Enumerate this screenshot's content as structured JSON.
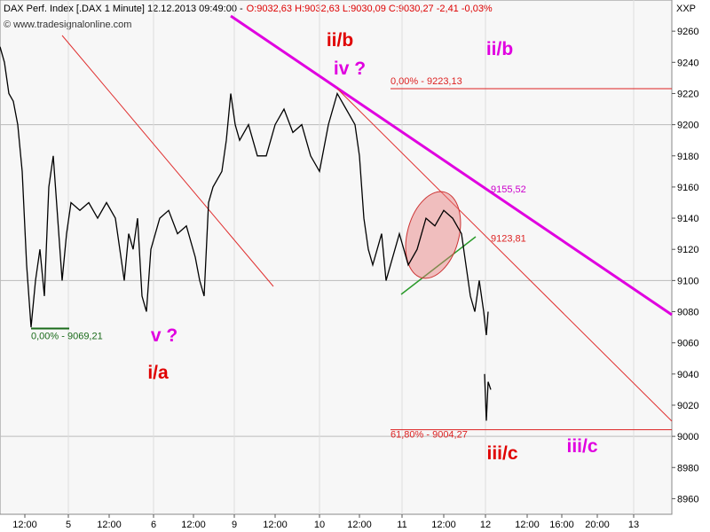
{
  "chart_data": {
    "type": "line",
    "title": "DAX Perf. Index [.DAX  1 Minute] 12.12.2013 09:49:00 -",
    "quote": "O:9032,63 H:9032,63 L:9030,09 C:9030,27 -2,41 -0,03%",
    "copyright": "© www.tradesignalonline.com",
    "axis_label": "XXP",
    "xlim": [
      0,
      75.7
    ],
    "xticks": [
      {
        "value": 2.8,
        "label": "12:00"
      },
      {
        "value": 7.7,
        "label": "5"
      },
      {
        "value": 12.3,
        "label": "12:00"
      },
      {
        "value": 17.3,
        "label": "6"
      },
      {
        "value": 21.8,
        "label": "12:00"
      },
      {
        "value": 26.4,
        "label": "9"
      },
      {
        "value": 31.0,
        "label": "12:00"
      },
      {
        "value": 36.0,
        "label": "10"
      },
      {
        "value": 40.5,
        "label": "12:00"
      },
      {
        "value": 45.3,
        "label": "11"
      },
      {
        "value": 50.0,
        "label": "12:00"
      },
      {
        "value": 54.7,
        "label": "12"
      },
      {
        "value": 59.4,
        "label": "12:00"
      },
      {
        "value": 63.3,
        "label": "16:00"
      },
      {
        "value": 67.3,
        "label": "20:00"
      },
      {
        "value": 71.4,
        "label": "13"
      }
    ],
    "ylim": [
      8950,
      9280
    ],
    "yticks": [
      8960,
      8980,
      9000,
      9020,
      9040,
      9060,
      9080,
      9100,
      9120,
      9140,
      9160,
      9180,
      9200,
      9220,
      9240,
      9260
    ],
    "grid": true,
    "series": [
      {
        "name": "DAX",
        "color": "#000000",
        "x": [
          0,
          0.5,
          1,
          1.5,
          2,
          2.5,
          3,
          3.5,
          4,
          4.5,
          5,
          5.5,
          6,
          6.5,
          7,
          7.5,
          8,
          9,
          10,
          11,
          12,
          13,
          13.5,
          14,
          14.5,
          15,
          15.5,
          16,
          16.5,
          17,
          18,
          19,
          20,
          21,
          22,
          22.5,
          23,
          23.5,
          24,
          25,
          25.5,
          26,
          26.5,
          27,
          28,
          29,
          30,
          31,
          32,
          33,
          34,
          35,
          36,
          37,
          38,
          39,
          40,
          40.5,
          41,
          41.5,
          42,
          43,
          43.5,
          44,
          45,
          46,
          47,
          48,
          49,
          50,
          51,
          52,
          52.5,
          53,
          53.5,
          54,
          54.5,
          54.8,
          55,
          55.1,
          54.6,
          54.8,
          55,
          55.3
        ],
        "values": [
          9250,
          9240,
          9220,
          9215,
          9200,
          9170,
          9110,
          9070,
          9100,
          9120,
          9090,
          9160,
          9180,
          9140,
          9100,
          9130,
          9150,
          9145,
          9150,
          9140,
          9150,
          9140,
          9120,
          9100,
          9130,
          9120,
          9140,
          9090,
          9080,
          9120,
          9140,
          9145,
          9130,
          9135,
          9115,
          9100,
          9090,
          9150,
          9160,
          9170,
          9190,
          9220,
          9200,
          9190,
          9200,
          9180,
          9180,
          9200,
          9210,
          9195,
          9200,
          9180,
          9170,
          9200,
          9220,
          9210,
          9200,
          9180,
          9140,
          9120,
          9110,
          9130,
          9100,
          9110,
          9130,
          9110,
          9120,
          9140,
          9135,
          9145,
          9140,
          9130,
          9110,
          9090,
          9080,
          9100,
          9080,
          9065,
          9080,
          null,
          9040,
          9010,
          9035,
          9030
        ]
      }
    ],
    "levels": [
      {
        "value": 9223.13,
        "label": "0,00% - 9223,13",
        "color": "#d22"
      },
      {
        "value": 9004.27,
        "label": "61,80% - 9004,27",
        "color": "#d22"
      },
      {
        "value": 9069.21,
        "label": "0,00% - 9069,21",
        "color": "#1a6b1a"
      }
    ],
    "price_labels": [
      {
        "value": 9155.52,
        "label": "9155,52",
        "color": "#c0c"
      },
      {
        "value": 9123.81,
        "label": "9123,81",
        "color": "#d22"
      }
    ],
    "annotations": [
      {
        "text": "ii/b",
        "color": "#e00000"
      },
      {
        "text": "iv ?",
        "color": "#e000e0"
      },
      {
        "text": "ii/b",
        "color": "#e000e0"
      },
      {
        "text": "v ?",
        "color": "#e000e0"
      },
      {
        "text": "i/a",
        "color": "#e00000"
      },
      {
        "text": "iii/c",
        "color": "#e00000"
      },
      {
        "text": "iii/c",
        "color": "#e000e0"
      }
    ]
  }
}
